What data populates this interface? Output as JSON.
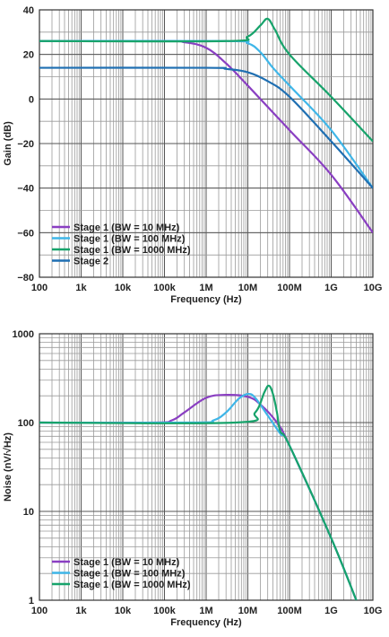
{
  "chart_data": [
    {
      "type": "line",
      "xlabel": "Frequency (Hz)",
      "ylabel": "Gain (dB)",
      "x_scale": "log",
      "xlim": [
        100,
        10000000000
      ],
      "ylim": [
        -80,
        40
      ],
      "x_ticks": [
        {
          "value": 100,
          "label": "100"
        },
        {
          "value": 1000,
          "label": "1k"
        },
        {
          "value": 10000,
          "label": "10k"
        },
        {
          "value": 100000,
          "label": "100k"
        },
        {
          "value": 1000000,
          "label": "1M"
        },
        {
          "value": 10000000,
          "label": "10M"
        },
        {
          "value": 100000000,
          "label": "100M"
        },
        {
          "value": 1000000000,
          "label": "1G"
        },
        {
          "value": 10000000000,
          "label": "10G"
        }
      ],
      "y_ticks": [
        {
          "value": 40,
          "label": "40"
        },
        {
          "value": 20,
          "label": "20"
        },
        {
          "value": 0,
          "label": "0"
        },
        {
          "value": -20,
          "label": "−20"
        },
        {
          "value": -40,
          "label": "−40"
        },
        {
          "value": -60,
          "label": "−60"
        },
        {
          "value": -80,
          "label": "−80"
        }
      ],
      "grid": true,
      "legend_position": "bottom-left",
      "series": [
        {
          "name": "Stage 1 (BW = 10 MHz)",
          "color": "#8a3fc2",
          "x": [
            100,
            100000,
            300000,
            1000000,
            3000000,
            10000000,
            100000000,
            1000000000,
            10000000000
          ],
          "y": [
            26,
            26,
            25.5,
            23,
            16,
            6,
            -14,
            -34,
            -60
          ]
        },
        {
          "name": "Stage 1 (BW = 100 MHz)",
          "color": "#3fb6e8",
          "x": [
            100,
            3000000,
            10000000,
            20000000,
            40000000,
            100000000,
            1000000000,
            10000000000
          ],
          "y": [
            26,
            26,
            25,
            21,
            14,
            6,
            -14,
            -40
          ]
        },
        {
          "name": "Stage 1 (BW = 1000 MHz)",
          "color": "#17a36b",
          "x": [
            100,
            3000000,
            10000000,
            20000000,
            30000000,
            45000000,
            100000000,
            1000000000,
            10000000000
          ],
          "y": [
            26,
            26,
            28,
            33,
            36,
            31,
            20,
            1,
            -19
          ]
        },
        {
          "name": "Stage 2",
          "color": "#1f6fb2",
          "x": [
            100,
            1000000,
            3000000,
            10000000,
            30000000,
            100000000,
            1000000000,
            10000000000
          ],
          "y": [
            14,
            14,
            13.5,
            12,
            8,
            1,
            -19,
            -40
          ]
        }
      ]
    },
    {
      "type": "line",
      "xlabel": "Frequency (Hz)",
      "ylabel": "Noise (nV/√Hz)",
      "x_scale": "log",
      "y_scale": "log",
      "xlim": [
        100,
        10000000000
      ],
      "ylim": [
        1,
        1000
      ],
      "x_ticks": [
        {
          "value": 100,
          "label": "100"
        },
        {
          "value": 1000,
          "label": "1k"
        },
        {
          "value": 10000,
          "label": "10k"
        },
        {
          "value": 100000,
          "label": "100k"
        },
        {
          "value": 1000000,
          "label": "1M"
        },
        {
          "value": 10000000,
          "label": "10M"
        },
        {
          "value": 100000000,
          "label": "100M"
        },
        {
          "value": 1000000000,
          "label": "1G"
        },
        {
          "value": 10000000000,
          "label": "10G"
        }
      ],
      "y_ticks": [
        {
          "value": 1000,
          "label": "1000"
        },
        {
          "value": 100,
          "label": "100"
        },
        {
          "value": 10,
          "label": "10"
        },
        {
          "value": 1,
          "label": "1"
        }
      ],
      "grid": true,
      "legend_position": "bottom-left",
      "series": [
        {
          "name": "Stage 1 (BW = 10 MHz)",
          "color": "#8a3fc2",
          "x": [
            100,
            50000,
            150000,
            300000,
            1000000,
            3000000,
            10000000,
            20000000,
            50000000,
            100000000,
            1000000000,
            4000000000
          ],
          "y": [
            100,
            100,
            106,
            130,
            190,
            205,
            195,
            160,
            100,
            55,
            5,
            1
          ]
        },
        {
          "name": "Stage 1 (BW = 100 MHz)",
          "color": "#3fb6e8",
          "x": [
            100,
            500000,
            1500000,
            3000000,
            6000000,
            10000000,
            15000000,
            30000000,
            60000000,
            100000000,
            1000000000,
            4000000000
          ],
          "y": [
            100,
            100,
            106,
            130,
            185,
            210,
            190,
            120,
            75,
            55,
            5,
            1
          ]
        },
        {
          "name": "Stage 1 (BW = 1000 MHz)",
          "color": "#17a36b",
          "x": [
            100,
            5000000,
            15000000,
            25000000,
            32000000,
            40000000,
            50000000,
            60000000,
            100000000,
            1000000000,
            4000000000
          ],
          "y": [
            100,
            100,
            130,
            220,
            260,
            210,
            130,
            80,
            55,
            5,
            1
          ]
        }
      ]
    }
  ]
}
